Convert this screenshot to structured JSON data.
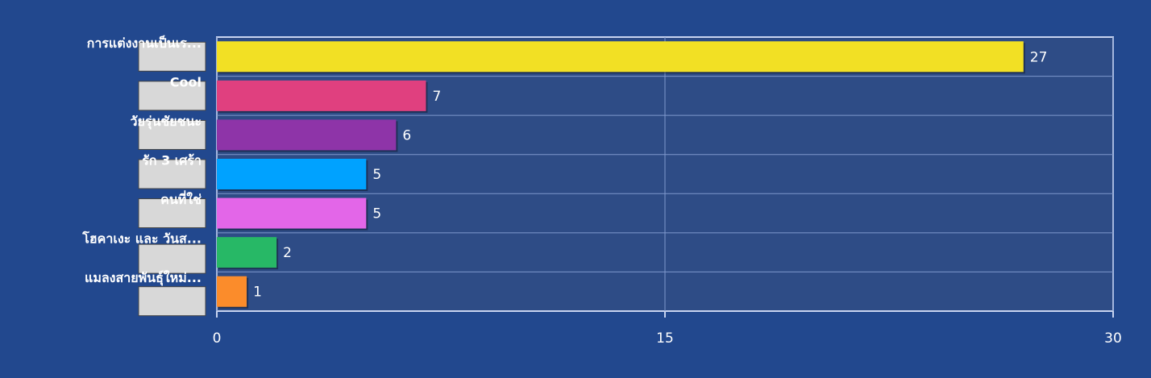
{
  "chart_data": {
    "type": "bar",
    "orientation": "horizontal",
    "categories": [
      "การแต่งงานเป็นเร...",
      "Cool",
      "วัยรุ่นชัยชนะ",
      "รัก 3 เศร้า",
      "คนที่ใช่",
      "โฮคาเงะ และ วันส...",
      "แมลงสายพันธุ์ใหม่..."
    ],
    "values": [
      27,
      7,
      6,
      5,
      5,
      2,
      1
    ],
    "colors": [
      "#f2e024",
      "#e0407f",
      "#8e34a8",
      "#00a2ff",
      "#e366e8",
      "#27b866",
      "#fb8c2b"
    ],
    "xlim": [
      0,
      30
    ],
    "xticks": [
      0,
      15,
      30
    ],
    "grid": true
  }
}
